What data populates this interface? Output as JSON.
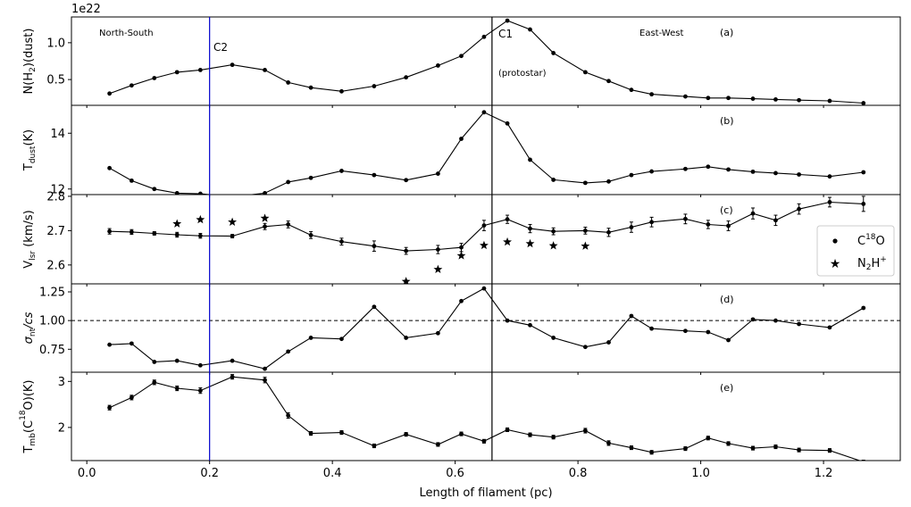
{
  "figure": {
    "xlabel": "Length of filament (pc)",
    "xlim": [
      -0.025,
      1.325
    ],
    "xticks": [
      0.0,
      0.2,
      0.4,
      0.6,
      0.8,
      1.0,
      1.2
    ],
    "xtick_labels": [
      "0.0",
      "0.2",
      "0.4",
      "0.6",
      "0.8",
      "1.0",
      "1.2"
    ],
    "vlines": [
      {
        "x": 0.2,
        "color": "#0000cc",
        "label": "C2",
        "label_panel": 0
      },
      {
        "x": 0.66,
        "color": "#000000",
        "label": "C1",
        "label_panel": 0
      }
    ],
    "annotations": {
      "north_south": "North-South",
      "east_west": "East-West",
      "c2": "C2",
      "c1": "C1",
      "protostar": "(protostar)",
      "offset_label": "1e22"
    },
    "colors": {
      "line": "#000000",
      "c2_line": "#0000cc"
    }
  },
  "chart_data": [
    {
      "type": "line",
      "panel_label": "(a)",
      "ylabel": "N(H2)(dust)",
      "ylim": [
        0.15,
        1.35
      ],
      "yticks": [
        0.5,
        1.0
      ],
      "ytick_labels": [
        "0.5",
        "1.0"
      ],
      "y_scale_factor": "1e22",
      "series": [
        {
          "x": [
            0.037,
            0.073,
            0.11,
            0.147,
            0.185,
            0.237,
            0.29,
            0.328,
            0.365,
            0.415,
            0.468,
            0.52,
            0.572,
            0.61,
            0.647,
            0.685,
            0.722,
            0.76,
            0.812,
            0.85,
            0.887,
            0.92,
            0.975,
            1.012,
            1.045,
            1.085,
            1.122,
            1.16,
            1.21,
            1.265
          ],
          "y": [
            0.31,
            0.42,
            0.52,
            0.6,
            0.63,
            0.7,
            0.63,
            0.46,
            0.39,
            0.34,
            0.41,
            0.53,
            0.69,
            0.82,
            1.08,
            1.3,
            1.18,
            0.86,
            0.6,
            0.48,
            0.36,
            0.3,
            0.27,
            0.25,
            0.25,
            0.24,
            0.23,
            0.22,
            0.21,
            0.18
          ]
        }
      ]
    },
    {
      "type": "line",
      "panel_label": "(b)",
      "ylabel": "Tdust(K)",
      "ylim": [
        11.8,
        15.0
      ],
      "yticks": [
        12,
        14
      ],
      "ytick_labels": [
        "12",
        "14"
      ],
      "series": [
        {
          "x": [
            0.037,
            0.073,
            0.11,
            0.147,
            0.185,
            0.237,
            0.29,
            0.328,
            0.365,
            0.415,
            0.468,
            0.52,
            0.572,
            0.61,
            0.647,
            0.685,
            0.722,
            0.76,
            0.812,
            0.85,
            0.887,
            0.92,
            0.975,
            1.012,
            1.045,
            1.085,
            1.122,
            1.16,
            1.21,
            1.265
          ],
          "y": [
            12.75,
            12.3,
            12.0,
            11.85,
            11.83,
            11.72,
            11.85,
            12.25,
            12.4,
            12.65,
            12.5,
            12.32,
            12.55,
            13.8,
            14.75,
            14.35,
            13.05,
            12.33,
            12.22,
            12.27,
            12.5,
            12.63,
            12.72,
            12.8,
            12.7,
            12.62,
            12.57,
            12.52,
            12.45,
            12.6
          ]
        }
      ]
    },
    {
      "type": "scatter",
      "panel_label": "(c)",
      "ylabel": "Vlsr (km/s)",
      "ylim": [
        2.545,
        2.805
      ],
      "yticks": [
        2.6,
        2.7,
        2.8
      ],
      "ytick_labels": [
        "2.6",
        "2.7",
        "2.8"
      ],
      "legend_position": "right",
      "series": [
        {
          "name": "C18O",
          "marker": "dot",
          "line": true,
          "x": [
            0.037,
            0.073,
            0.11,
            0.147,
            0.185,
            0.237,
            0.29,
            0.328,
            0.365,
            0.415,
            0.468,
            0.52,
            0.572,
            0.61,
            0.647,
            0.685,
            0.722,
            0.76,
            0.812,
            0.85,
            0.887,
            0.92,
            0.975,
            1.012,
            1.045,
            1.085,
            1.122,
            1.16,
            1.21,
            1.265
          ],
          "y": [
            2.698,
            2.696,
            2.692,
            2.688,
            2.685,
            2.684,
            2.712,
            2.718,
            2.687,
            2.668,
            2.655,
            2.641,
            2.645,
            2.651,
            2.715,
            2.733,
            2.706,
            2.698,
            2.7,
            2.695,
            2.71,
            2.725,
            2.734,
            2.718,
            2.714,
            2.75,
            2.73,
            2.763,
            2.783,
            2.778
          ],
          "yerr": [
            0.008,
            0.007,
            0.005,
            0.007,
            0.007,
            0.005,
            0.009,
            0.01,
            0.01,
            0.01,
            0.015,
            0.01,
            0.012,
            0.012,
            0.015,
            0.012,
            0.012,
            0.01,
            0.01,
            0.012,
            0.015,
            0.014,
            0.014,
            0.012,
            0.014,
            0.016,
            0.015,
            0.015,
            0.014,
            0.022
          ]
        },
        {
          "name": "N2H+",
          "marker": "star",
          "line": false,
          "x": [
            0.147,
            0.185,
            0.237,
            0.29,
            0.52,
            0.572,
            0.61,
            0.647,
            0.685,
            0.722,
            0.76,
            0.812
          ],
          "y": [
            2.72,
            2.732,
            2.725,
            2.736,
            2.552,
            2.587,
            2.627,
            2.657,
            2.667,
            2.662,
            2.656,
            2.655
          ]
        }
      ]
    },
    {
      "type": "line",
      "panel_label": "(d)",
      "ylabel": "σnt/cs",
      "ylim": [
        0.55,
        1.32
      ],
      "yticks": [
        0.75,
        1.0,
        1.25
      ],
      "ytick_labels": [
        "0.75",
        "1.00",
        "1.25"
      ],
      "hline": {
        "y": 1.0,
        "style": "dashed"
      },
      "series": [
        {
          "x": [
            0.037,
            0.073,
            0.11,
            0.147,
            0.185,
            0.237,
            0.29,
            0.328,
            0.365,
            0.415,
            0.468,
            0.52,
            0.572,
            0.61,
            0.647,
            0.685,
            0.722,
            0.76,
            0.812,
            0.85,
            0.887,
            0.92,
            0.975,
            1.012,
            1.045,
            1.085,
            1.122,
            1.16,
            1.21,
            1.265
          ],
          "y": [
            0.79,
            0.8,
            0.64,
            0.65,
            0.61,
            0.65,
            0.58,
            0.73,
            0.85,
            0.84,
            1.12,
            0.85,
            0.89,
            1.17,
            1.28,
            1.0,
            0.96,
            0.85,
            0.77,
            0.81,
            1.04,
            0.93,
            0.91,
            0.9,
            0.83,
            1.01,
            1.0,
            0.97,
            0.94,
            1.11
          ]
        }
      ]
    },
    {
      "type": "line",
      "panel_label": "(e)",
      "ylabel": "Tmb(C18O)(K)",
      "ylim": [
        1.28,
        3.2
      ],
      "yticks": [
        2,
        3
      ],
      "ytick_labels": [
        "2",
        "3"
      ],
      "series": [
        {
          "x": [
            0.037,
            0.073,
            0.11,
            0.147,
            0.185,
            0.237,
            0.29,
            0.328,
            0.365,
            0.415,
            0.468,
            0.52,
            0.572,
            0.61,
            0.647,
            0.685,
            0.722,
            0.76,
            0.812,
            0.85,
            0.887,
            0.92,
            0.975,
            1.012,
            1.045,
            1.085,
            1.122,
            1.16,
            1.21,
            1.265
          ],
          "y": [
            2.43,
            2.65,
            2.98,
            2.85,
            2.8,
            3.1,
            3.03,
            2.26,
            1.87,
            1.89,
            1.6,
            1.85,
            1.63,
            1.86,
            1.7,
            1.95,
            1.84,
            1.79,
            1.93,
            1.66,
            1.56,
            1.46,
            1.54,
            1.77,
            1.65,
            1.55,
            1.58,
            1.51,
            1.5,
            1.25
          ],
          "yerr": [
            0.05,
            0.05,
            0.05,
            0.05,
            0.06,
            0.05,
            0.06,
            0.06,
            0.04,
            0.04,
            0.04,
            0.04,
            0.04,
            0.04,
            0.04,
            0.04,
            0.04,
            0.04,
            0.05,
            0.05,
            0.04,
            0.04,
            0.04,
            0.04,
            0.04,
            0.04,
            0.04,
            0.04,
            0.04,
            0.04
          ]
        }
      ]
    }
  ]
}
